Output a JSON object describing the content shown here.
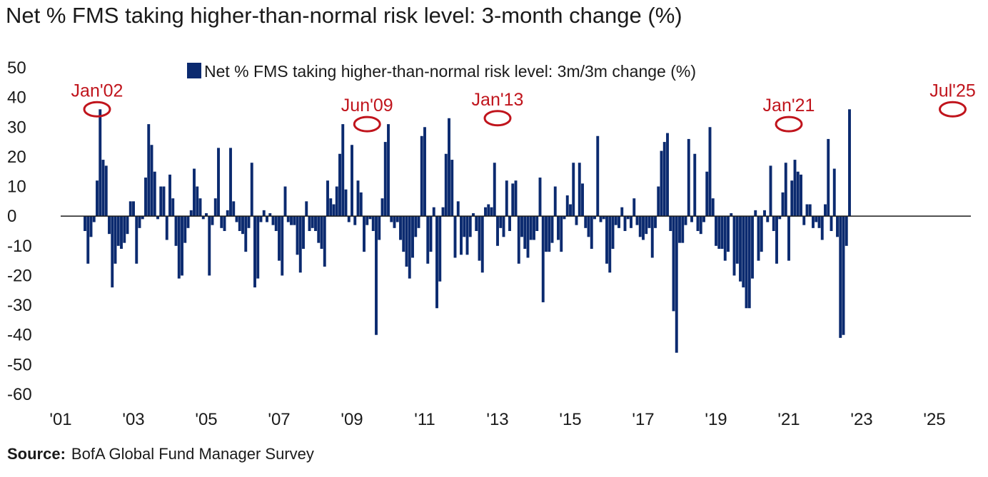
{
  "subtitle": "Net % FMS taking higher-than-normal risk level: 3-month change (%)",
  "source": {
    "label": "Source:",
    "text": "BofA Global Fund Manager Survey"
  },
  "colors": {
    "bar": "#0b2a6f",
    "annotation": "#c0141c",
    "axis": "#1a1a1a"
  },
  "chart_data": {
    "type": "bar",
    "title": "",
    "ylim": [
      -60,
      50
    ],
    "yticks": [
      50,
      40,
      30,
      20,
      10,
      0,
      -10,
      -20,
      -30,
      -40,
      -50,
      -60
    ],
    "xlim": [
      2001.0,
      2026.0
    ],
    "xticks": [
      {
        "year": 2001,
        "label": "'01"
      },
      {
        "year": 2003,
        "label": "'03"
      },
      {
        "year": 2005,
        "label": "'05"
      },
      {
        "year": 2007,
        "label": "'07"
      },
      {
        "year": 2009,
        "label": "'09"
      },
      {
        "year": 2011,
        "label": "'11"
      },
      {
        "year": 2013,
        "label": "'13"
      },
      {
        "year": 2015,
        "label": "'15"
      },
      {
        "year": 2017,
        "label": "'17"
      },
      {
        "year": 2019,
        "label": "'19"
      },
      {
        "year": 2021,
        "label": "'21"
      },
      {
        "year": 2023,
        "label": "'23"
      },
      {
        "year": 2025,
        "label": "'25"
      }
    ],
    "legend": {
      "position": "top-center"
    },
    "series": [
      {
        "name": "Net % FMS taking higher-than-normal risk level: 3m/3m change (%)",
        "color": "#0b2a6f",
        "start": "2001-09",
        "values": [
          -5,
          -16,
          -7,
          -2,
          12,
          36,
          19,
          17,
          -6,
          -24,
          -16,
          -10,
          -11,
          -9,
          -6,
          5,
          5,
          -16,
          -4,
          -1,
          13,
          31,
          24,
          15,
          -1,
          10,
          10,
          -8,
          14,
          6,
          -10,
          -21,
          -20,
          -9,
          -4,
          2,
          16,
          10,
          6,
          -1,
          1,
          -20,
          -3,
          6,
          23,
          -4,
          -5,
          2,
          23,
          5,
          -2,
          -5,
          -6,
          -12,
          -4,
          18,
          -24,
          -21,
          -2,
          2,
          -2,
          1,
          -3,
          -5,
          -15,
          -20,
          10,
          -2,
          -3,
          -3,
          -13,
          -19,
          -11,
          5,
          -5,
          -4,
          -5,
          -9,
          -11,
          -17,
          12,
          6,
          4,
          10,
          21,
          31,
          9,
          -2,
          24,
          -3,
          12,
          8,
          -12,
          -3,
          -1,
          -5,
          -40,
          -8,
          6,
          25,
          31,
          -2,
          -4,
          -2,
          -8,
          -12,
          -17,
          -21,
          -14,
          -7,
          -4,
          27,
          30,
          -16,
          -12,
          3,
          -31,
          -22,
          3,
          21,
          33,
          19,
          -14,
          5,
          -13,
          -7,
          -13,
          -7,
          1,
          -5,
          -15,
          -19,
          3,
          4,
          3,
          18,
          -10,
          -4,
          -7,
          12,
          -5,
          11,
          12,
          -16,
          -7,
          -11,
          -14,
          -8,
          -8,
          -5,
          13,
          -29,
          -12,
          -12,
          -9,
          10,
          -8,
          -12,
          -1,
          7,
          4,
          18,
          -3,
          18,
          11,
          -4,
          -7,
          -11,
          -1,
          27,
          -2,
          -1,
          -16,
          -19,
          -11,
          -3,
          -4,
          3,
          -5,
          -1,
          -4,
          6,
          -3,
          -7,
          -8,
          -6,
          -4,
          -14,
          -4,
          10,
          22,
          25,
          28,
          -5,
          -32,
          -46,
          -9,
          -9,
          -3,
          26,
          -2,
          21,
          -5,
          -6,
          -2,
          15,
          30,
          6,
          -10,
          -11,
          -11,
          -15,
          -12,
          1,
          -20,
          -16,
          -22,
          -24,
          -31,
          -31,
          -21,
          2,
          -15,
          -12,
          2,
          -2,
          17,
          -5,
          -16,
          -1,
          8,
          18,
          -15,
          12,
          19,
          15,
          14,
          -3,
          4,
          4,
          -4,
          -2,
          -4,
          -8,
          4,
          26,
          -5,
          16,
          -7,
          -41,
          -40,
          -10,
          36
        ]
      }
    ],
    "annotations": [
      {
        "label": "Jan'02",
        "date": "2002-01",
        "value": 36
      },
      {
        "label": "Jun'09",
        "date": "2009-06",
        "value": 31
      },
      {
        "label": "Jan'13",
        "date": "2013-01",
        "value": 33
      },
      {
        "label": "Jan'21",
        "date": "2021-01",
        "value": 31
      },
      {
        "label": "Jul'25",
        "date": "2025-07",
        "value": 36
      }
    ]
  }
}
